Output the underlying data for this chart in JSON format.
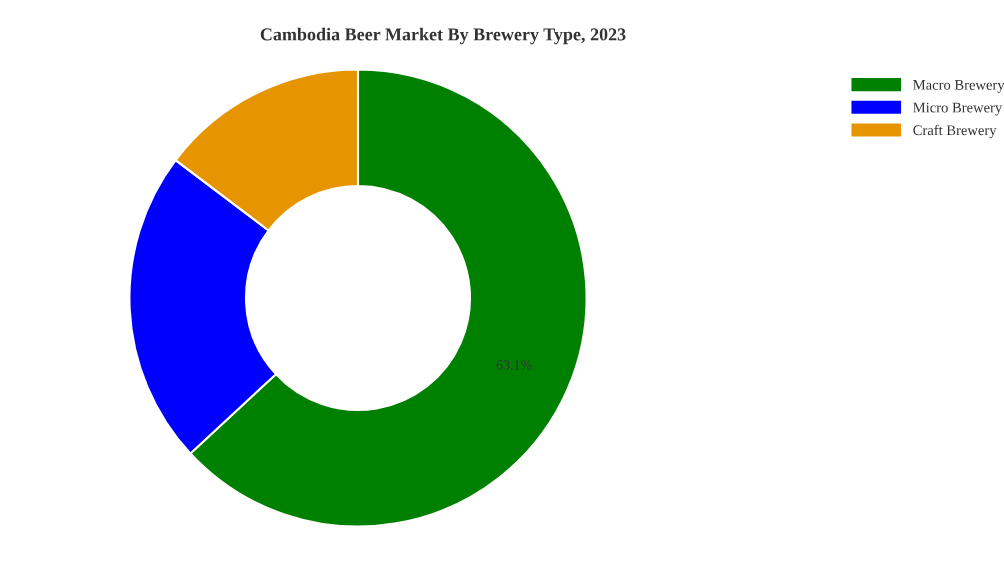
{
  "chart_data": {
    "type": "donut",
    "title": "Cambodia Beer Market By Brewery Type, 2023",
    "categories": [
      "Macro Brewery",
      "Micro Brewery",
      "Craft Brewery"
    ],
    "values": [
      63.1,
      22.2,
      14.7
    ],
    "colors": [
      "#008000",
      "#0000ff",
      "#e69500"
    ],
    "value_labels": [
      "63.1%",
      null,
      null
    ],
    "legend": "top right"
  }
}
